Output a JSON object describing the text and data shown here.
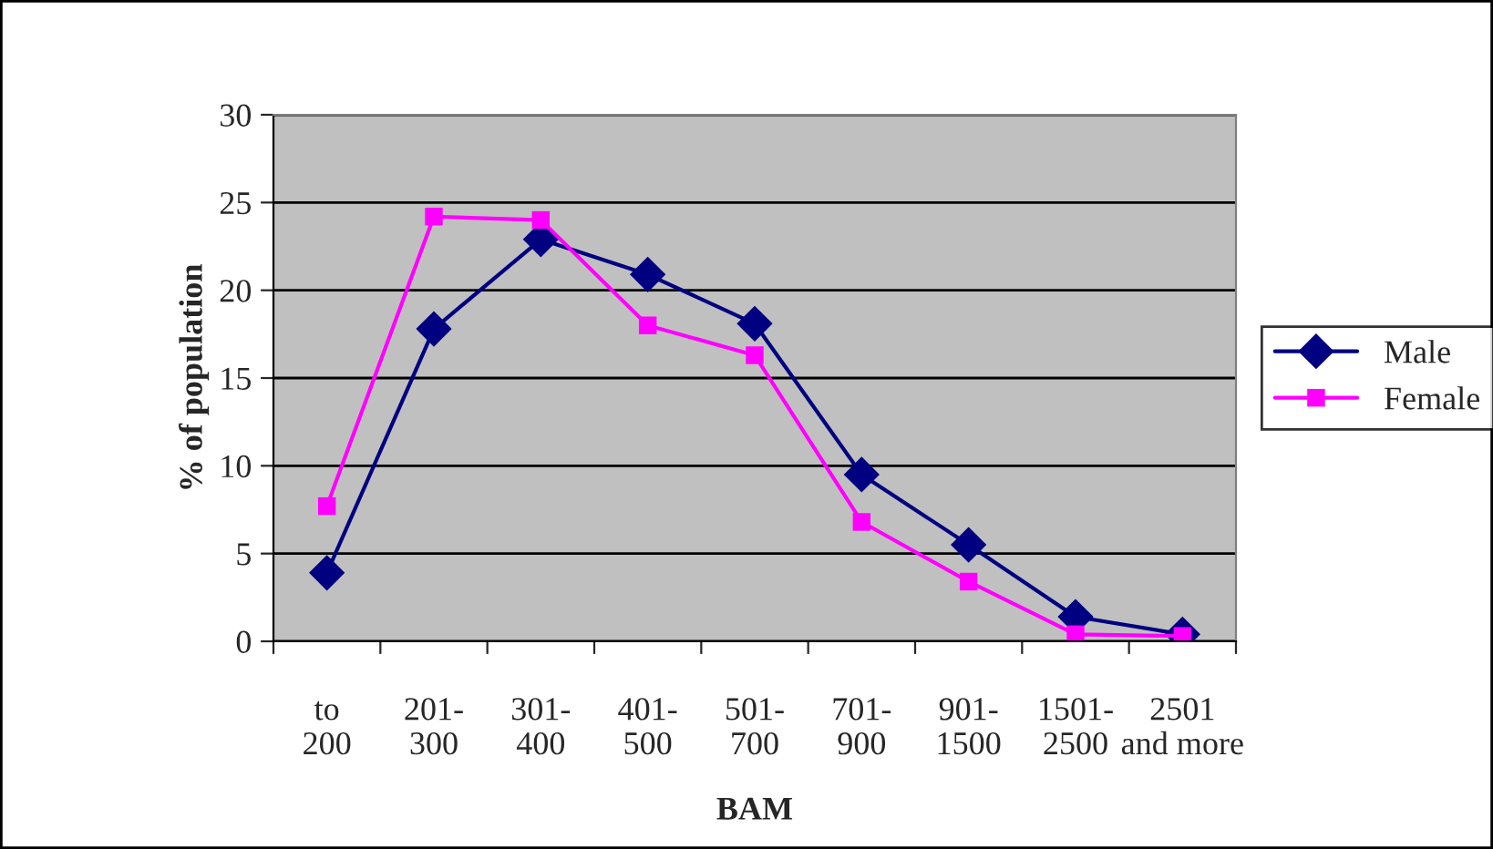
{
  "chart_data": {
    "type": "line",
    "xlabel": "BAM",
    "ylabel": "% of population",
    "categories": [
      "to\n200",
      "201-\n300",
      "301-\n400",
      "401-\n500",
      "501-\n700",
      "701-\n900",
      "901-\n1500",
      "1501-\n2500",
      "2501\nand more"
    ],
    "series": [
      {
        "name": "Male",
        "color": "#000080",
        "marker": "diamond",
        "values": [
          3.9,
          17.8,
          22.9,
          20.9,
          18.1,
          9.5,
          5.5,
          1.4,
          0.4
        ]
      },
      {
        "name": "Female",
        "color": "#ff00ff",
        "marker": "square",
        "values": [
          7.7,
          24.2,
          24.0,
          18.0,
          16.3,
          6.8,
          3.4,
          0.4,
          0.3
        ]
      }
    ],
    "ylim": [
      0,
      30
    ],
    "yticks": [
      0,
      5,
      10,
      15,
      20,
      25,
      30
    ],
    "grid": "y",
    "legend": "right",
    "line_style": "solid"
  }
}
